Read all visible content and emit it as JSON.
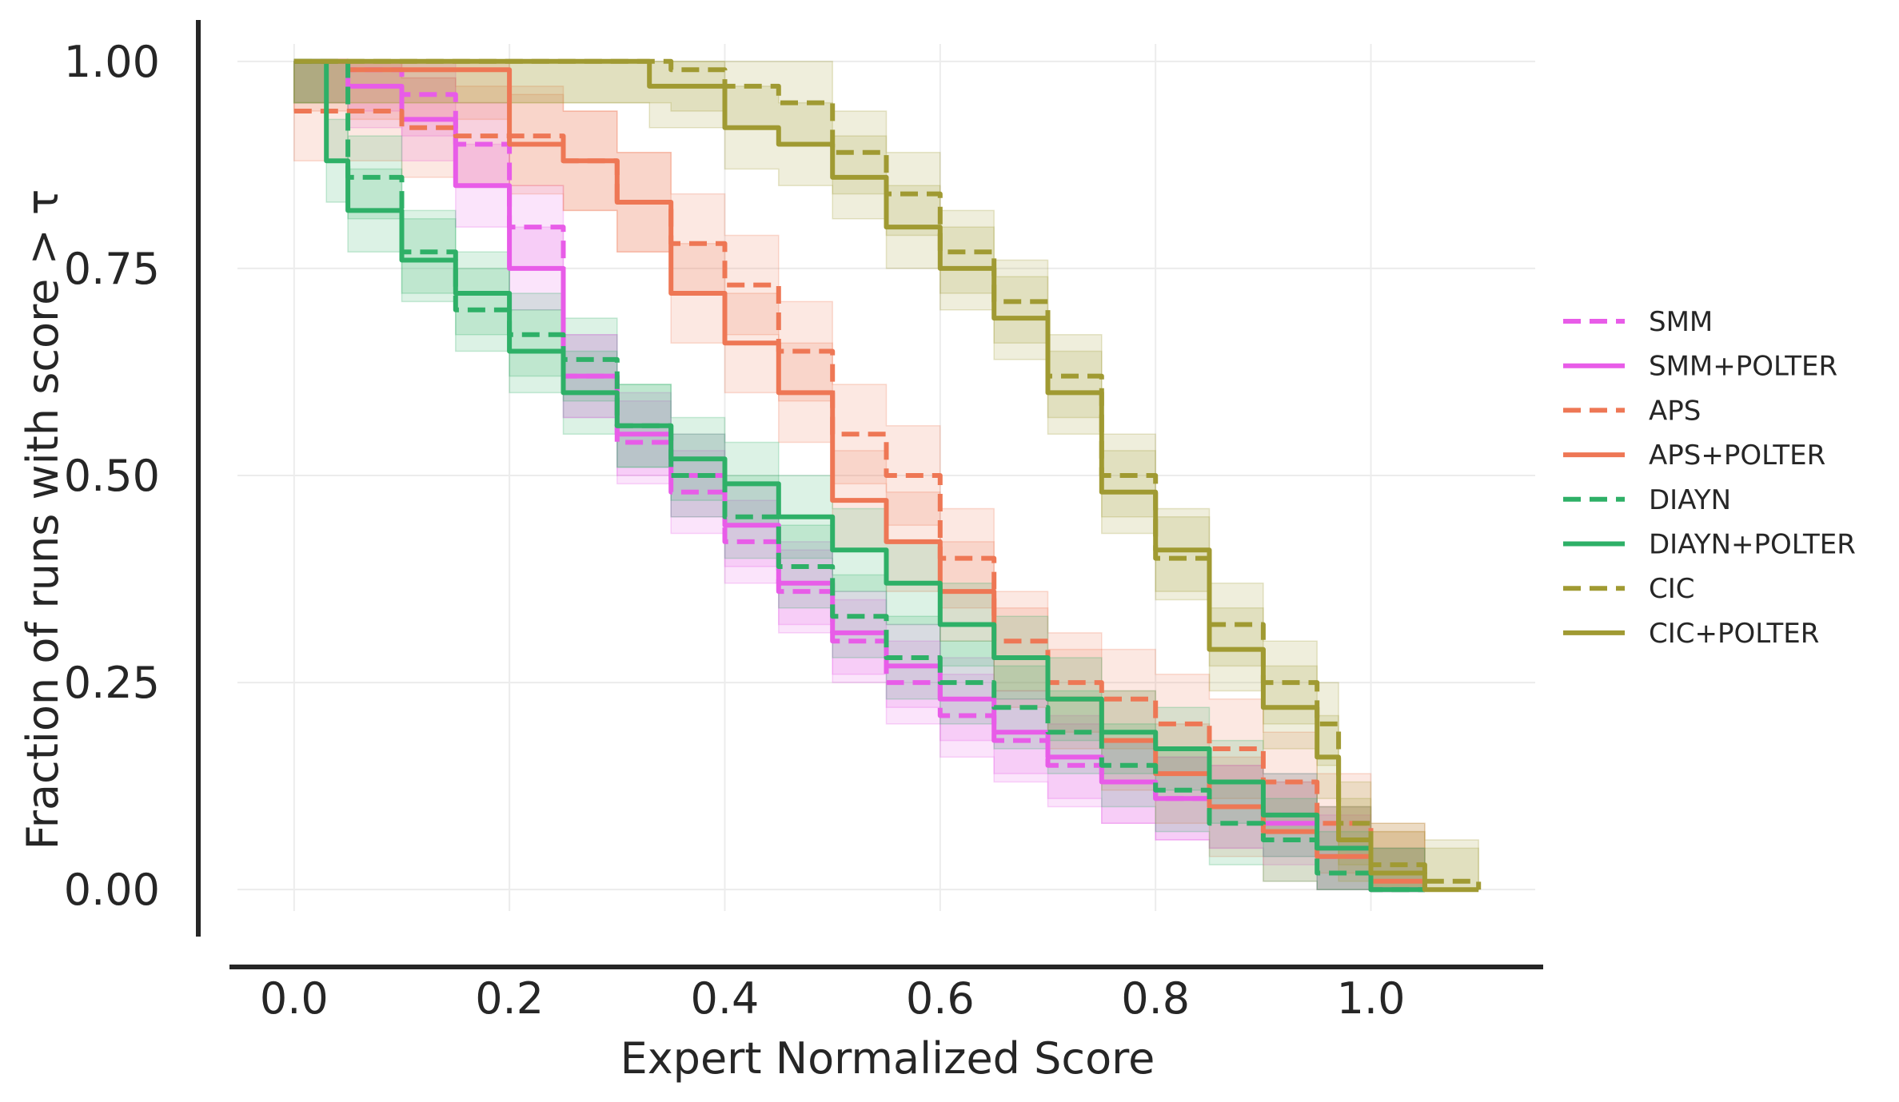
{
  "chart_data": {
    "type": "line",
    "xlabel": "Expert Normalized Score",
    "ylabel": "Fraction of runs with score > τ",
    "xlim": [
      -0.06,
      1.16
    ],
    "ylim": [
      -0.05,
      1.05
    ],
    "xticks": [
      0.0,
      0.2,
      0.4,
      0.6,
      0.8,
      1.0
    ],
    "xtick_labels": [
      "0.0",
      "0.2",
      "0.4",
      "0.6",
      "0.8",
      "1.0"
    ],
    "yticks": [
      0.0,
      0.25,
      0.5,
      0.75,
      1.0
    ],
    "ytick_labels": [
      "0.00",
      "0.25",
      "0.50",
      "0.75",
      "1.00"
    ],
    "grid": true,
    "legend_position": "right",
    "series": [
      {
        "name": "SMM",
        "style": "dashed",
        "color": "#e85ce8",
        "band": 0.05,
        "x": [
          0.0,
          0.05,
          0.1,
          0.15,
          0.2,
          0.25,
          0.3,
          0.35,
          0.4,
          0.45,
          0.5,
          0.55,
          0.6,
          0.65,
          0.7,
          0.75,
          0.8,
          0.85,
          0.9,
          0.95,
          1.0,
          1.05
        ],
        "y": [
          1.0,
          0.99,
          0.96,
          0.9,
          0.8,
          0.62,
          0.54,
          0.48,
          0.42,
          0.36,
          0.3,
          0.25,
          0.21,
          0.18,
          0.15,
          0.13,
          0.11,
          0.1,
          0.09,
          0.04,
          0.0,
          0.0
        ]
      },
      {
        "name": "SMM+POLTER",
        "style": "solid",
        "color": "#e85ce8",
        "band": 0.05,
        "x": [
          0.0,
          0.05,
          0.1,
          0.15,
          0.2,
          0.25,
          0.3,
          0.35,
          0.4,
          0.45,
          0.5,
          0.55,
          0.6,
          0.65,
          0.7,
          0.75,
          0.8,
          0.85,
          0.9,
          0.95,
          1.0,
          1.05
        ],
        "y": [
          1.0,
          0.97,
          0.93,
          0.85,
          0.75,
          0.62,
          0.55,
          0.5,
          0.44,
          0.37,
          0.31,
          0.27,
          0.23,
          0.19,
          0.16,
          0.13,
          0.11,
          0.1,
          0.08,
          0.05,
          0.0,
          0.0
        ]
      },
      {
        "name": "APS",
        "style": "dashed",
        "color": "#ee7755",
        "band": 0.06,
        "x": [
          0.0,
          0.05,
          0.1,
          0.15,
          0.2,
          0.25,
          0.3,
          0.35,
          0.4,
          0.45,
          0.5,
          0.55,
          0.6,
          0.65,
          0.7,
          0.75,
          0.8,
          0.85,
          0.9,
          0.95,
          1.0,
          1.05
        ],
        "y": [
          0.94,
          0.94,
          0.92,
          0.91,
          0.91,
          0.88,
          0.83,
          0.78,
          0.73,
          0.65,
          0.55,
          0.5,
          0.4,
          0.3,
          0.25,
          0.23,
          0.2,
          0.17,
          0.13,
          0.08,
          0.02,
          0.0
        ]
      },
      {
        "name": "APS+POLTER",
        "style": "solid",
        "color": "#ee7755",
        "band": 0.06,
        "x": [
          0.0,
          0.05,
          0.1,
          0.13,
          0.2,
          0.25,
          0.3,
          0.35,
          0.4,
          0.45,
          0.5,
          0.55,
          0.6,
          0.65,
          0.7,
          0.75,
          0.8,
          0.85,
          0.9,
          0.95,
          1.0,
          1.05
        ],
        "y": [
          1.0,
          0.99,
          0.99,
          0.99,
          0.9,
          0.88,
          0.83,
          0.72,
          0.66,
          0.6,
          0.47,
          0.42,
          0.36,
          0.28,
          0.23,
          0.18,
          0.14,
          0.1,
          0.07,
          0.04,
          0.01,
          0.0
        ]
      },
      {
        "name": "DIAYN",
        "style": "dashed",
        "color": "#2eb067",
        "band": 0.05,
        "x": [
          0.0,
          0.05,
          0.1,
          0.15,
          0.2,
          0.25,
          0.3,
          0.35,
          0.4,
          0.45,
          0.5,
          0.55,
          0.6,
          0.65,
          0.7,
          0.75,
          0.8,
          0.85,
          0.9,
          0.95,
          1.0,
          1.05
        ],
        "y": [
          1.0,
          0.86,
          0.77,
          0.7,
          0.67,
          0.64,
          0.56,
          0.5,
          0.45,
          0.39,
          0.33,
          0.28,
          0.25,
          0.22,
          0.19,
          0.15,
          0.12,
          0.08,
          0.06,
          0.02,
          0.0,
          0.0
        ]
      },
      {
        "name": "DIAYN+POLTER",
        "style": "solid",
        "color": "#2eb067",
        "band": 0.05,
        "x": [
          0.0,
          0.03,
          0.05,
          0.1,
          0.15,
          0.2,
          0.25,
          0.3,
          0.35,
          0.4,
          0.45,
          0.5,
          0.55,
          0.6,
          0.65,
          0.7,
          0.75,
          0.8,
          0.85,
          0.9,
          0.95,
          1.0,
          1.05
        ],
        "y": [
          1.0,
          0.88,
          0.82,
          0.76,
          0.72,
          0.65,
          0.6,
          0.56,
          0.52,
          0.49,
          0.45,
          0.41,
          0.37,
          0.32,
          0.28,
          0.23,
          0.19,
          0.17,
          0.13,
          0.09,
          0.05,
          0.0,
          0.0
        ]
      },
      {
        "name": "CIC",
        "style": "dashed",
        "color": "#a09a32",
        "band": 0.05,
        "x": [
          0.0,
          0.1,
          0.2,
          0.3,
          0.35,
          0.4,
          0.45,
          0.5,
          0.55,
          0.6,
          0.65,
          0.7,
          0.75,
          0.8,
          0.85,
          0.9,
          0.95,
          0.97,
          1.0,
          1.05,
          1.1
        ],
        "y": [
          1.0,
          1.0,
          1.0,
          1.0,
          0.99,
          0.97,
          0.95,
          0.89,
          0.84,
          0.77,
          0.71,
          0.62,
          0.5,
          0.4,
          0.32,
          0.25,
          0.2,
          0.08,
          0.03,
          0.01,
          0.0
        ]
      },
      {
        "name": "CIC+POLTER",
        "style": "solid",
        "color": "#a09a32",
        "band": 0.05,
        "x": [
          0.0,
          0.1,
          0.2,
          0.29,
          0.33,
          0.4,
          0.45,
          0.5,
          0.55,
          0.6,
          0.65,
          0.7,
          0.75,
          0.8,
          0.85,
          0.9,
          0.95,
          0.97,
          1.0,
          1.05,
          1.1
        ],
        "y": [
          1.0,
          1.0,
          1.0,
          1.0,
          0.97,
          0.92,
          0.9,
          0.86,
          0.8,
          0.75,
          0.69,
          0.6,
          0.48,
          0.41,
          0.29,
          0.22,
          0.16,
          0.06,
          0.02,
          0.0,
          0.0
        ]
      }
    ]
  }
}
